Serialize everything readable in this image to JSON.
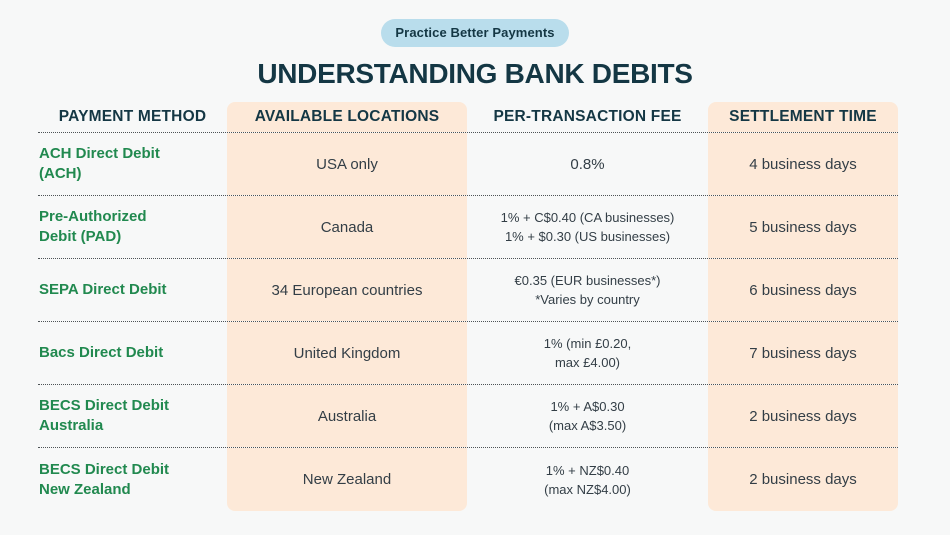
{
  "badge": {
    "label": "Practice Better Payments"
  },
  "title": "UNDERSTANDING BANK DEBITS",
  "table": {
    "headers": [
      "PAYMENT METHOD",
      "AVAILABLE LOCATIONS",
      "PER-TRANSACTION FEE",
      "SETTLEMENT TIME"
    ],
    "rows": [
      {
        "method": [
          "ACH Direct Debit",
          "(ACH)"
        ],
        "locations": "USA only",
        "fee": [
          "0.8%"
        ],
        "settlement": "4 business days"
      },
      {
        "method": [
          "Pre-Authorized",
          "Debit (PAD)"
        ],
        "locations": "Canada",
        "fee": [
          "1% + C$0.40 (CA businesses)",
          "1% + $0.30 (US businesses)"
        ],
        "settlement": "5 business days"
      },
      {
        "method": [
          "SEPA Direct Debit"
        ],
        "locations": "34 European countries",
        "fee": [
          "€0.35 (EUR businesses*)",
          "*Varies by country"
        ],
        "settlement": "6 business days"
      },
      {
        "method": [
          "Bacs Direct Debit"
        ],
        "locations": "United Kingdom",
        "fee": [
          "1% (min £0.20,",
          "max £4.00)"
        ],
        "settlement": "7 business days"
      },
      {
        "method": [
          "BECS Direct Debit",
          "Australia"
        ],
        "locations": "Australia",
        "fee": [
          "1% + A$0.30",
          "(max A$3.50)"
        ],
        "settlement": "2 business days"
      },
      {
        "method": [
          "BECS Direct Debit",
          "New Zealand"
        ],
        "locations": "New Zealand",
        "fee": [
          "1% + NZ$0.40",
          "(max NZ$4.00)"
        ],
        "settlement": "2 business days"
      }
    ]
  },
  "colors": {
    "background": "#f7f8f8",
    "badge_bg": "#b9ddec",
    "dark_teal": "#143744",
    "green": "#21894f",
    "peach": "#fde9d8",
    "body_text": "#333e46",
    "divider": "#4d5356"
  }
}
